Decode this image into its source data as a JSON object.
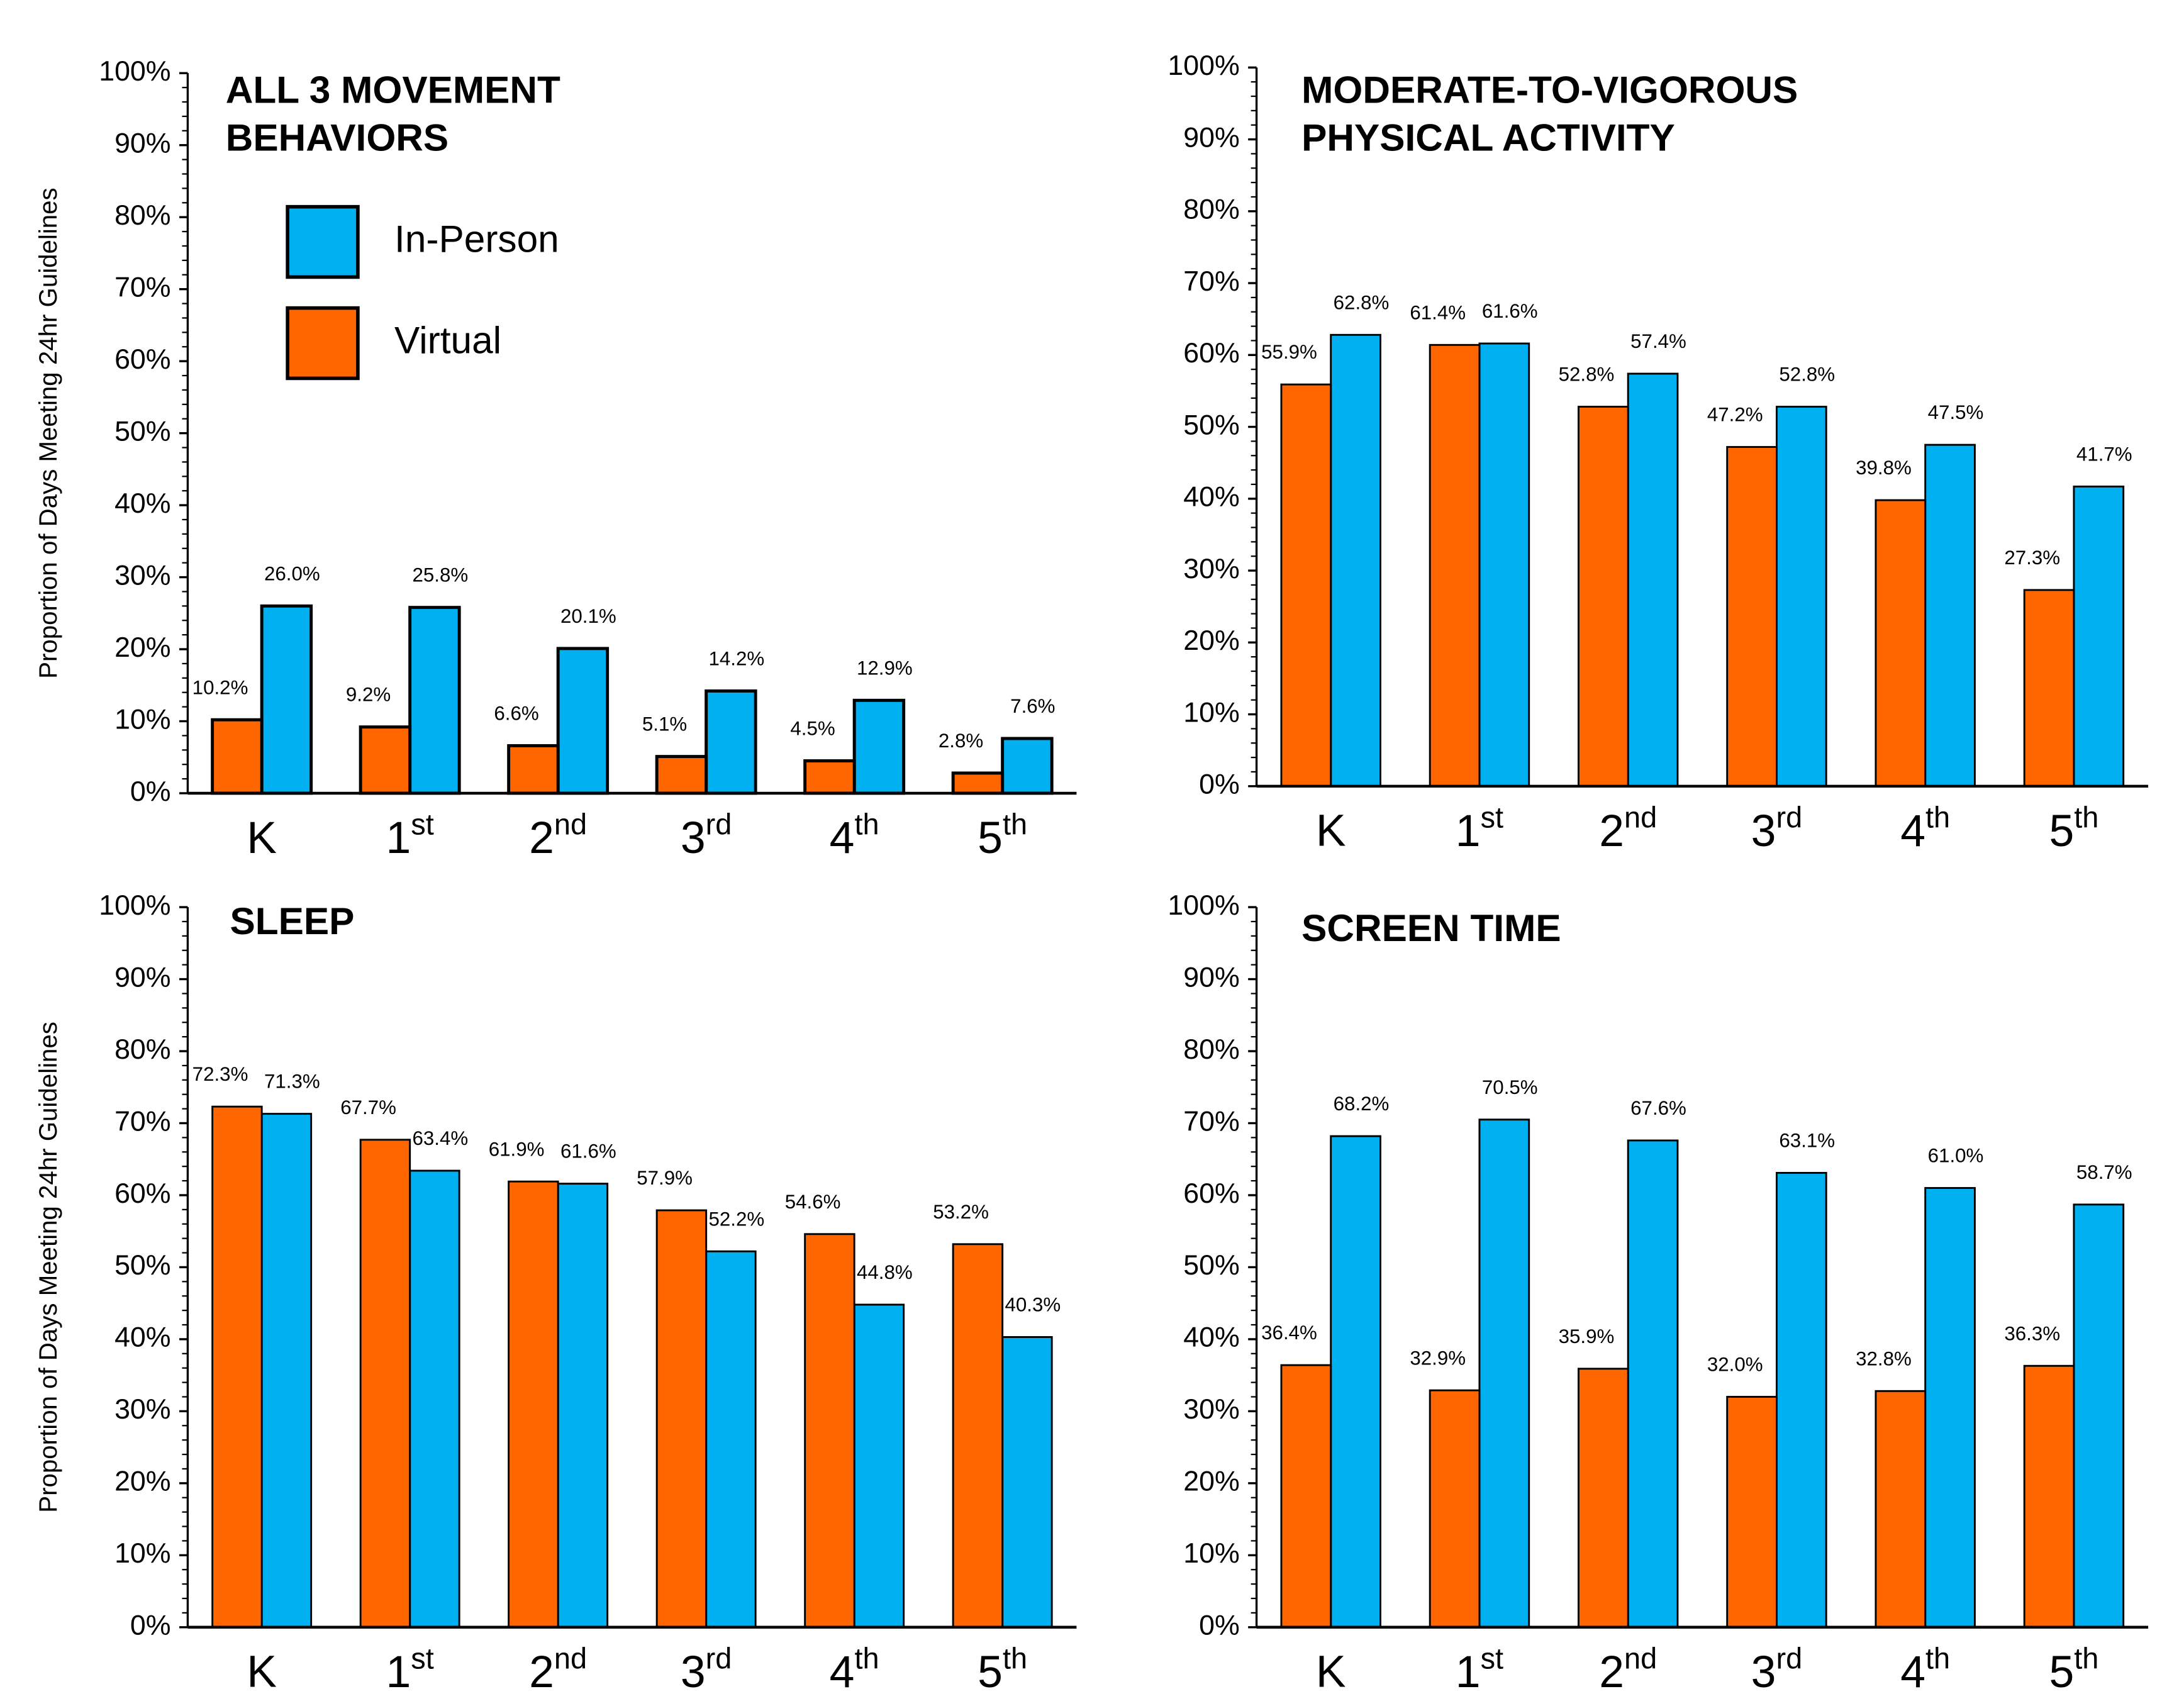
{
  "chart_data": [
    {
      "type": "bar",
      "title": [
        "ALL 3 MOVEMENT",
        "BEHAVIORS"
      ],
      "ylabel": "Proportion of Days Meeting 24hr Guidelines",
      "categories": [
        "K",
        "1st",
        "2nd",
        "3rd",
        "4th",
        "5th"
      ],
      "series": [
        {
          "name": "In-Person",
          "color": "#00b0f0",
          "values": [
            26.0,
            25.8,
            20.1,
            14.2,
            12.9,
            7.6
          ],
          "value_labels": [
            "26.0%",
            "25.8%",
            "20.1%",
            "14.2%",
            "12.9%",
            "7.6%"
          ]
        },
        {
          "name": "Virtual",
          "color": "#ff6600",
          "values": [
            10.2,
            9.2,
            6.6,
            5.1,
            4.5,
            2.8
          ],
          "value_labels": [
            "10.2%",
            "9.2%",
            "6.6%",
            "5.1%",
            "4.5%",
            "2.8%"
          ]
        }
      ],
      "ylim": [
        0,
        100
      ],
      "yticks": [
        {
          "value": 0,
          "label": "0%"
        },
        {
          "value": 10,
          "label": "10%"
        },
        {
          "value": 20,
          "label": "20%"
        },
        {
          "value": 30,
          "label": "30%"
        },
        {
          "value": 40,
          "label": "40%"
        },
        {
          "value": 50,
          "label": "50%"
        },
        {
          "value": 60,
          "label": "60%"
        },
        {
          "value": 70,
          "label": "70%"
        },
        {
          "value": 80,
          "label": "80%"
        },
        {
          "value": 90,
          "label": "90%"
        },
        {
          "value": 100,
          "label": "100%"
        }
      ],
      "legend": "upper left"
    },
    {
      "type": "bar",
      "title": [
        "MODERATE-TO-VIGOROUS",
        "PHYSICAL ACTIVITY"
      ],
      "categories": [
        "K",
        "1st",
        "2nd",
        "3rd",
        "4th",
        "5th"
      ],
      "series": [
        {
          "name": "In-Person",
          "color": "#00b0f0",
          "values": [
            62.8,
            61.6,
            57.4,
            52.8,
            47.5,
            41.7
          ],
          "value_labels": [
            "62.8%",
            "61.6%",
            "57.4%",
            "52.8%",
            "47.5%",
            "41.7%"
          ]
        },
        {
          "name": "Virtual",
          "color": "#ff6600",
          "values": [
            55.9,
            61.4,
            52.8,
            47.2,
            39.8,
            27.3
          ],
          "value_labels": [
            "55.9%",
            "61.4%",
            "52.8%",
            "47.2%",
            "39.8%",
            "27.3%"
          ]
        }
      ],
      "ylim": [
        0,
        100
      ],
      "yticks": [
        {
          "value": 0,
          "label": "0%"
        },
        {
          "value": 10,
          "label": "10%"
        },
        {
          "value": 20,
          "label": "20%"
        },
        {
          "value": 30,
          "label": "30%"
        },
        {
          "value": 40,
          "label": "40%"
        },
        {
          "value": 50,
          "label": "50%"
        },
        {
          "value": 60,
          "label": "60%"
        },
        {
          "value": 70,
          "label": "70%"
        },
        {
          "value": 80,
          "label": "80%"
        },
        {
          "value": 90,
          "label": "90%"
        },
        {
          "value": 100,
          "label": "100%"
        }
      ]
    },
    {
      "type": "bar",
      "title": [
        "SLEEP"
      ],
      "ylabel": "Proportion of Days Meeting 24hr Guidelines",
      "categories": [
        "K",
        "1st",
        "2nd",
        "3rd",
        "4th",
        "5th"
      ],
      "series": [
        {
          "name": "In-Person",
          "color": "#00b0f0",
          "values": [
            71.3,
            63.4,
            61.6,
            52.2,
            44.8,
            40.3
          ],
          "value_labels": [
            "71.3%",
            "63.4%",
            "61.6%",
            "52.2%",
            "44.8%",
            "40.3%"
          ]
        },
        {
          "name": "Virtual",
          "color": "#ff6600",
          "values": [
            72.3,
            67.7,
            61.9,
            57.9,
            54.6,
            53.2
          ],
          "value_labels": [
            "72.3%",
            "67.7%",
            "61.9%",
            "57.9%",
            "54.6%",
            "53.2%"
          ]
        }
      ],
      "ylim": [
        0,
        100
      ],
      "yticks": [
        {
          "value": 0,
          "label": "0%"
        },
        {
          "value": 10,
          "label": "10%"
        },
        {
          "value": 20,
          "label": "20%"
        },
        {
          "value": 30,
          "label": "30%"
        },
        {
          "value": 40,
          "label": "40%"
        },
        {
          "value": 50,
          "label": "50%"
        },
        {
          "value": 60,
          "label": "60%"
        },
        {
          "value": 70,
          "label": "70%"
        },
        {
          "value": 80,
          "label": "80%"
        },
        {
          "value": 90,
          "label": "90%"
        },
        {
          "value": 100,
          "label": "100%"
        }
      ]
    },
    {
      "type": "bar",
      "title": [
        "SCREEN TIME"
      ],
      "categories": [
        "K",
        "1st",
        "2nd",
        "3rd",
        "4th",
        "5th"
      ],
      "series": [
        {
          "name": "In-Person",
          "color": "#00b0f0",
          "values": [
            68.2,
            70.5,
            67.6,
            63.1,
            61.0,
            58.7
          ],
          "value_labels": [
            "68.2%",
            "70.5%",
            "67.6%",
            "63.1%",
            "61.0%",
            "58.7%"
          ]
        },
        {
          "name": "Virtual",
          "color": "#ff6600",
          "values": [
            36.4,
            32.9,
            35.9,
            32.0,
            32.8,
            36.3
          ],
          "value_labels": [
            "36.4%",
            "32.9%",
            "35.9%",
            "32.0%",
            "32.8%",
            "36.3%"
          ]
        }
      ],
      "ylim": [
        0,
        100
      ],
      "yticks": [
        {
          "value": 0,
          "label": "0%"
        },
        {
          "value": 10,
          "label": "10%"
        },
        {
          "value": 20,
          "label": "20%"
        },
        {
          "value": 30,
          "label": "30%"
        },
        {
          "value": 40,
          "label": "40%"
        },
        {
          "value": 50,
          "label": "50%"
        },
        {
          "value": 60,
          "label": "60%"
        },
        {
          "value": 70,
          "label": "70%"
        },
        {
          "value": 80,
          "label": "80%"
        },
        {
          "value": 90,
          "label": "90%"
        },
        {
          "value": 100,
          "label": "100%"
        }
      ]
    }
  ]
}
